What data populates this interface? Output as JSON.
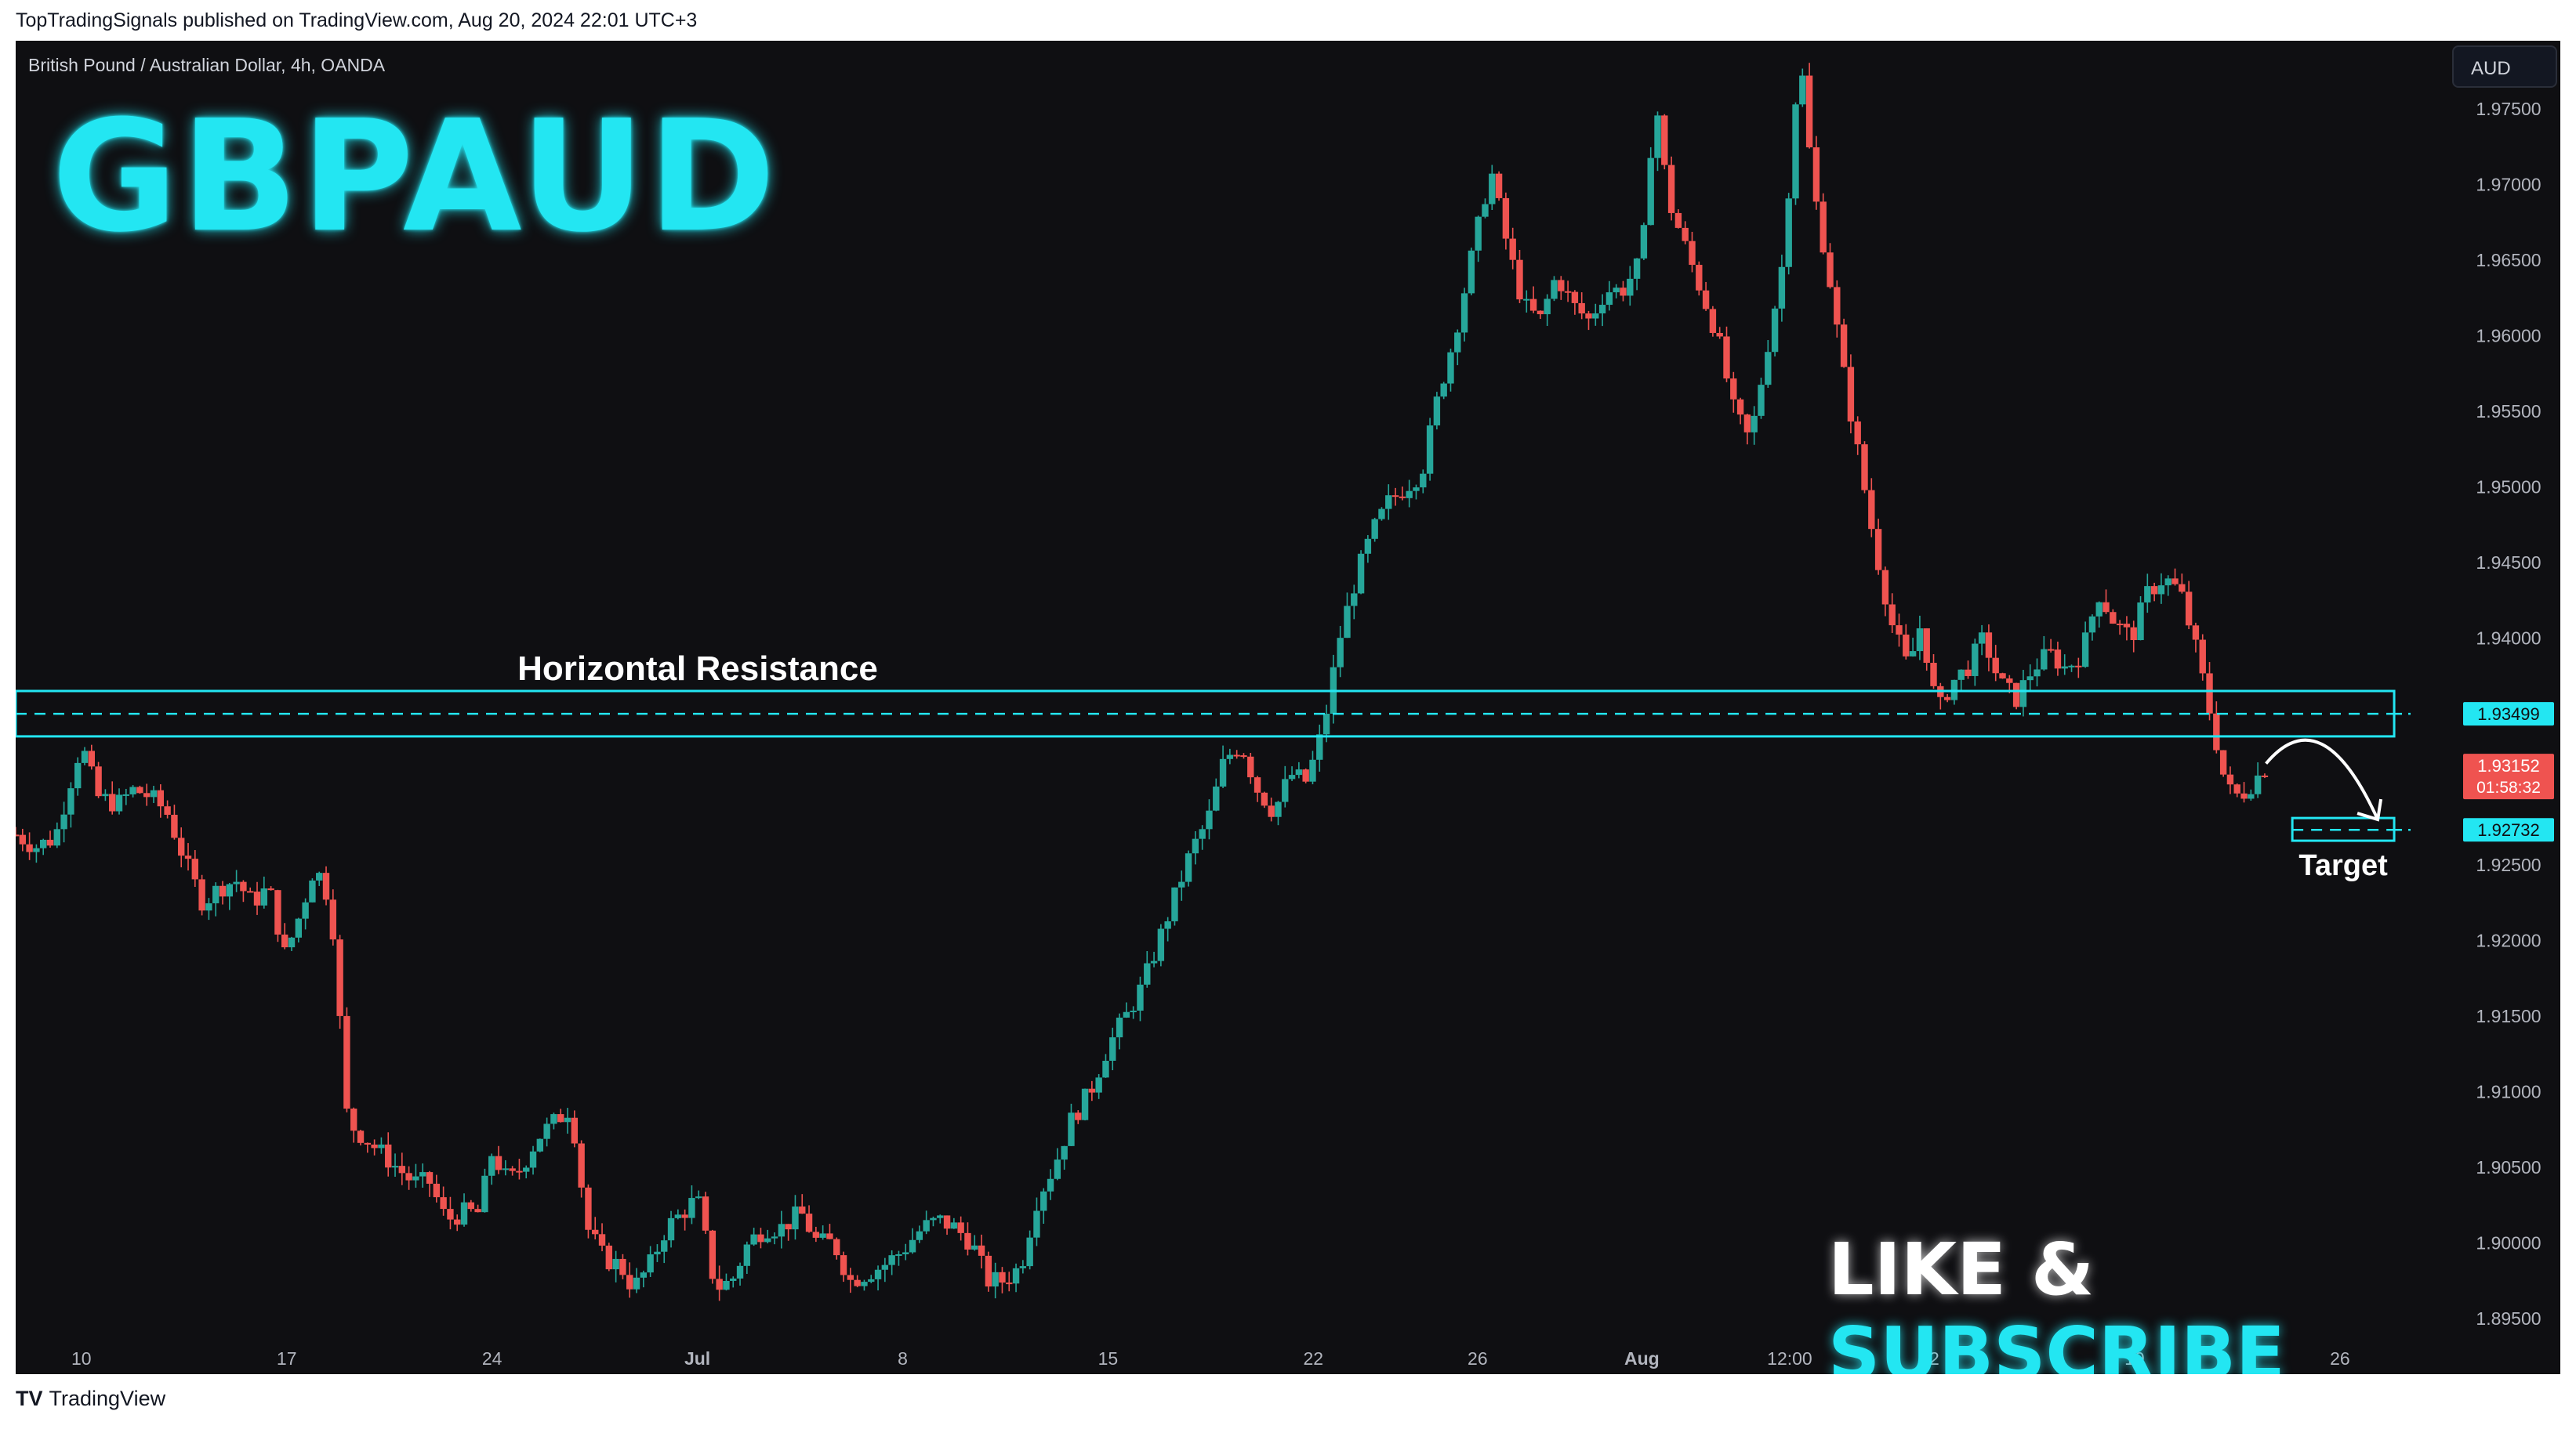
{
  "publish_line": "TopTradingSignals published on TradingView.com, Aug 20, 2024 22:01 UTC+3",
  "symbol_line": "British Pound / Australian Dollar, 4h, OANDA",
  "currency_button": "AUD",
  "title_overlay": "GBPAUD",
  "cta": {
    "part1": "LIKE & ",
    "part2": "SUBSCRIBE"
  },
  "footer": {
    "logo": "TV",
    "brand": "TradingView"
  },
  "colors": {
    "background": "#0f0f12",
    "up": "#26a69a",
    "down": "#ef5350",
    "accent": "#23e6f2"
  },
  "annotations": {
    "resistance_label": "Horizontal Resistance",
    "target_label": "Target"
  },
  "chart_data": {
    "type": "candlestick",
    "interval": "4h",
    "y_range": [
      1.8935,
      1.9795
    ],
    "y_ticks": [
      "1.97500",
      "1.97000",
      "1.96500",
      "1.96000",
      "1.95500",
      "1.95000",
      "1.94500",
      "1.94000",
      "1.93500",
      "1.93000",
      "1.92500",
      "1.92000",
      "1.91500",
      "1.91000",
      "1.90500",
      "1.90000",
      "1.89500"
    ],
    "y_tick_values": [
      1.975,
      1.97,
      1.965,
      1.96,
      1.955,
      1.95,
      1.945,
      1.94,
      1.935,
      1.93,
      1.925,
      1.92,
      1.915,
      1.91,
      1.905,
      1.9,
      1.895
    ],
    "x_ticks": [
      {
        "label": "10",
        "t": 8
      },
      {
        "label": "17",
        "t": 133
      },
      {
        "label": "24",
        "t": 258
      },
      {
        "label": "Jul",
        "t": 383
      },
      {
        "label": "8",
        "t": 508
      },
      {
        "label": "15",
        "t": 633
      },
      {
        "label": "22",
        "t": 758
      },
      {
        "label": "26",
        "t": 858
      },
      {
        "label": "Aug",
        "t": 958
      },
      {
        "label": "12:00",
        "t": 1048
      },
      {
        "label": "12",
        "t": 1133
      },
      {
        "label": "19",
        "t": 1258
      },
      {
        "label": "26",
        "t": 1383
      }
    ],
    "t_range": [
      -32,
      1426
    ],
    "close_path": [
      [
        -32,
        1.927
      ],
      [
        -20,
        1.9262
      ],
      [
        -8,
        1.9268
      ],
      [
        0,
        1.93
      ],
      [
        8,
        1.933
      ],
      [
        18,
        1.9295
      ],
      [
        30,
        1.929
      ],
      [
        40,
        1.93
      ],
      [
        50,
        1.9295
      ],
      [
        60,
        1.9285
      ],
      [
        72,
        1.925
      ],
      [
        82,
        1.9225
      ],
      [
        92,
        1.9235
      ],
      [
        102,
        1.924
      ],
      [
        112,
        1.9225
      ],
      [
        122,
        1.9235
      ],
      [
        132,
        1.919
      ],
      [
        142,
        1.922
      ],
      [
        150,
        1.925
      ],
      [
        160,
        1.9225
      ],
      [
        170,
        1.908
      ],
      [
        180,
        1.907
      ],
      [
        190,
        1.906
      ],
      [
        200,
        1.905
      ],
      [
        210,
        1.904
      ],
      [
        220,
        1.904
      ],
      [
        230,
        1.9015
      ],
      [
        240,
        1.902
      ],
      [
        250,
        1.902
      ],
      [
        258,
        1.906
      ],
      [
        268,
        1.904
      ],
      [
        276,
        1.905
      ],
      [
        286,
        1.907
      ],
      [
        296,
        1.908
      ],
      [
        306,
        1.909
      ],
      [
        316,
        1.901
      ],
      [
        326,
        1.899
      ],
      [
        336,
        1.8985
      ],
      [
        344,
        1.897
      ],
      [
        354,
        1.8985
      ],
      [
        364,
        1.901
      ],
      [
        374,
        1.902
      ],
      [
        383,
        1.903
      ],
      [
        394,
        1.897
      ],
      [
        404,
        1.8975
      ],
      [
        414,
        1.9
      ],
      [
        424,
        1.901
      ],
      [
        434,
        1.901
      ],
      [
        446,
        1.902
      ],
      [
        456,
        1.9
      ],
      [
        466,
        1.9
      ],
      [
        476,
        1.8975
      ],
      [
        486,
        1.898
      ],
      [
        496,
        1.8985
      ],
      [
        508,
        1.8995
      ],
      [
        520,
        1.901
      ],
      [
        530,
        1.9015
      ],
      [
        540,
        1.901
      ],
      [
        550,
        1.9
      ],
      [
        560,
        1.8975
      ],
      [
        570,
        1.8975
      ],
      [
        580,
        1.8985
      ],
      [
        590,
        1.903
      ],
      [
        600,
        1.905
      ],
      [
        610,
        1.908
      ],
      [
        622,
        1.91
      ],
      [
        633,
        1.913
      ],
      [
        644,
        1.915
      ],
      [
        654,
        1.917
      ],
      [
        664,
        1.92
      ],
      [
        674,
        1.923
      ],
      [
        684,
        1.926
      ],
      [
        694,
        1.928
      ],
      [
        704,
        1.932
      ],
      [
        714,
        1.933
      ],
      [
        724,
        1.93
      ],
      [
        734,
        1.9285
      ],
      [
        744,
        1.931
      ],
      [
        754,
        1.9305
      ],
      [
        764,
        1.934
      ],
      [
        774,
        1.94
      ],
      [
        784,
        1.944
      ],
      [
        794,
        1.947
      ],
      [
        804,
        1.949
      ],
      [
        814,
        1.95
      ],
      [
        824,
        1.951
      ],
      [
        834,
        1.956
      ],
      [
        844,
        1.96
      ],
      [
        854,
        1.965
      ],
      [
        866,
        1.971
      ],
      [
        876,
        1.966
      ],
      [
        886,
        1.962
      ],
      [
        896,
        1.961
      ],
      [
        906,
        1.964
      ],
      [
        916,
        1.962
      ],
      [
        926,
        1.961
      ],
      [
        936,
        1.963
      ],
      [
        946,
        1.963
      ],
      [
        958,
        1.965
      ],
      [
        966,
        1.976
      ],
      [
        974,
        1.969
      ],
      [
        984,
        1.966
      ],
      [
        994,
        1.963
      ],
      [
        1004,
        1.96
      ],
      [
        1014,
        1.955
      ],
      [
        1024,
        1.953
      ],
      [
        1034,
        1.959
      ],
      [
        1044,
        1.965
      ],
      [
        1054,
        1.979
      ],
      [
        1062,
        1.97
      ],
      [
        1072,
        1.964
      ],
      [
        1080,
        1.958
      ],
      [
        1090,
        1.952
      ],
      [
        1100,
        1.946
      ],
      [
        1110,
        1.941
      ],
      [
        1120,
        1.938
      ],
      [
        1128,
        1.941
      ],
      [
        1138,
        1.935
      ],
      [
        1146,
        1.937
      ],
      [
        1156,
        1.938
      ],
      [
        1166,
        1.94
      ],
      [
        1176,
        1.937
      ],
      [
        1186,
        1.936
      ],
      [
        1196,
        1.938
      ],
      [
        1206,
        1.939
      ],
      [
        1216,
        1.938
      ],
      [
        1226,
        1.939
      ],
      [
        1236,
        1.943
      ],
      [
        1246,
        1.941
      ],
      [
        1256,
        1.94
      ],
      [
        1266,
        1.943
      ],
      [
        1276,
        1.944
      ],
      [
        1286,
        1.943
      ],
      [
        1296,
        1.939
      ],
      [
        1306,
        1.934
      ],
      [
        1314,
        1.93
      ],
      [
        1322,
        1.9295
      ],
      [
        1330,
        1.9305
      ],
      [
        1338,
        1.9315
      ]
    ],
    "horizontal_levels": [
      {
        "label": "1.93499",
        "value": 1.93499,
        "zone": [
          1.9335,
          1.9365
        ],
        "start_t": -32,
        "end_t": 1416
      },
      {
        "label": "1.92732",
        "value": 1.92732,
        "zone": [
          1.9266,
          1.9281
        ],
        "start_t": 1354,
        "end_t": 1416
      }
    ],
    "last_price": {
      "value": 1.93152,
      "label": "1.93152",
      "countdown": "01:58:32"
    },
    "projection": {
      "from": [
        1338,
        1.9317
      ],
      "via": [
        1372,
        1.933
      ],
      "to": [
        1406,
        1.928
      ]
    }
  }
}
